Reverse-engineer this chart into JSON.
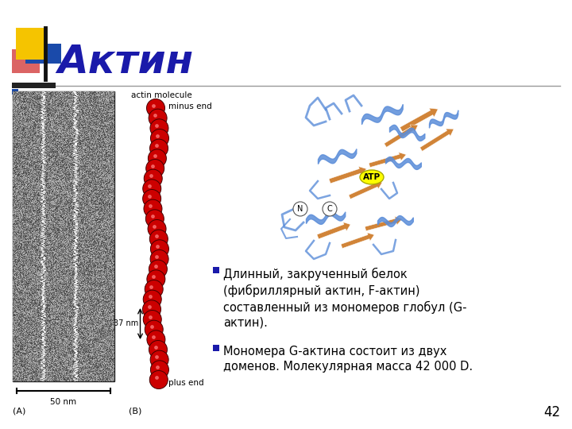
{
  "title": "Актин",
  "background_color": "#ffffff",
  "slide_number": "42",
  "text_bullet1": "Длинный, закрученный белок\n(фибриллярный актин, F-актин)\nсоставленный из мономеров глобул (G-\nактин).",
  "text_bullet2": "Мономера G-актина состоит из двух\nдоменов. Молекулярная масса 42 000 D.",
  "label_actin_molecule": "actin molecule",
  "label_minus_end": "minus end",
  "label_plus_end": "plus end",
  "label_37nm": "37 nm",
  "label_50nm": "50 nm",
  "label_A": "(A)",
  "label_B": "(B)",
  "title_color": "#1a1aaa",
  "bullet_square_color": "#1a1aaa",
  "deco_yellow": "#f5c400",
  "deco_red": "#cc2222",
  "deco_blue": "#1a4aaa",
  "deco_darkblue": "#111188",
  "sphere_color": "#cc0000",
  "sphere_edge": "#440000",
  "text_color": "#000000",
  "accent_line_color": "#999999",
  "atp_color": "#ffff00",
  "atp_text": "ATP"
}
